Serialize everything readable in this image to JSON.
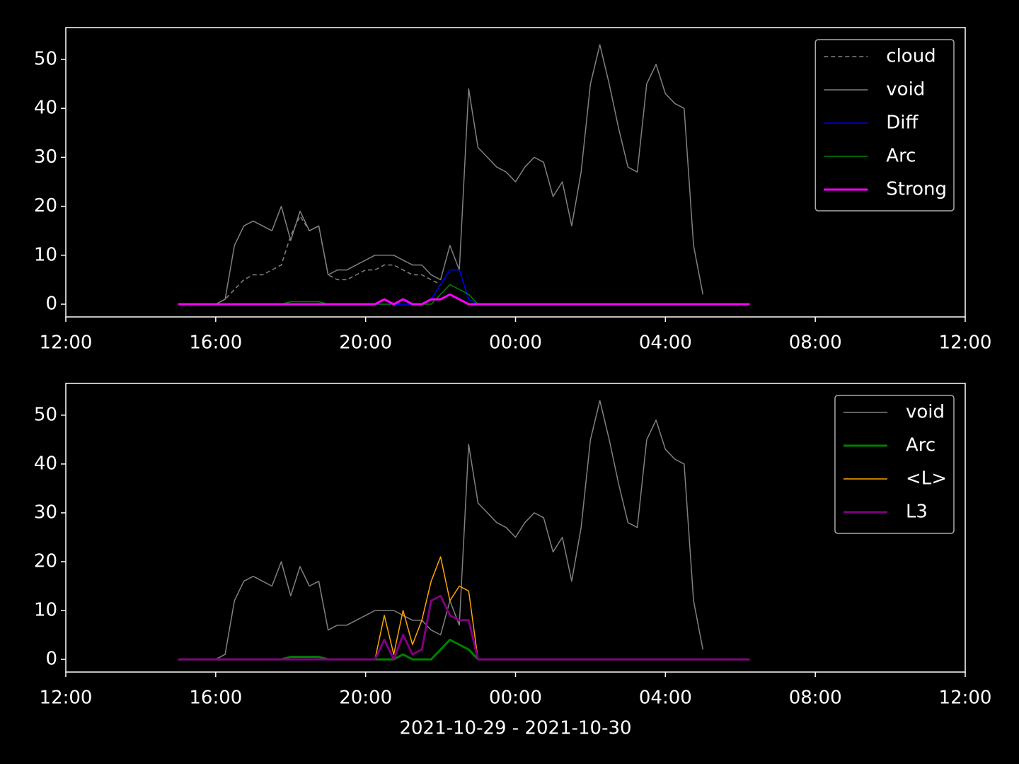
{
  "chart_data": [
    {
      "type": "line",
      "x": [
        15,
        15.25,
        15.5,
        15.75,
        16,
        16.25,
        16.5,
        16.75,
        17,
        17.25,
        17.5,
        17.75,
        18,
        18.25,
        18.5,
        18.75,
        19,
        19.25,
        19.5,
        19.75,
        20,
        20.25,
        20.5,
        20.75,
        21,
        21.25,
        21.5,
        21.75,
        22,
        22.25,
        22.5,
        22.75,
        23,
        23.25,
        23.5,
        23.75,
        24,
        24.25,
        24.5,
        24.75,
        25,
        25.25,
        25.5,
        25.75,
        26,
        26.25,
        26.5,
        26.75,
        27,
        27.25,
        27.5,
        27.75,
        28,
        28.25,
        28.5,
        28.75,
        29,
        29.25,
        29.5,
        29.75,
        30,
        30.25
      ],
      "xlim": [
        12,
        36
      ],
      "xticks": [
        {
          "value": 12,
          "label": "12:00"
        },
        {
          "value": 16,
          "label": "16:00"
        },
        {
          "value": 20,
          "label": "20:00"
        },
        {
          "value": 24,
          "label": "00:00"
        },
        {
          "value": 28,
          "label": "04:00"
        },
        {
          "value": 32,
          "label": "08:00"
        },
        {
          "value": 36,
          "label": "12:00"
        }
      ],
      "ylim": [
        -2.6,
        56.5
      ],
      "yticks": [
        0,
        10,
        20,
        30,
        40,
        50
      ],
      "legend": "upper right",
      "series": [
        {
          "name": "cloud",
          "color": "#808080",
          "linestyle": "dashed",
          "linewidth": 1.5,
          "values": [
            0,
            0,
            0,
            0,
            0,
            1,
            3,
            5,
            6,
            6,
            7,
            8,
            14,
            18,
            15,
            16,
            6,
            5,
            5,
            6,
            7,
            7,
            8,
            8,
            7,
            6,
            6,
            5,
            4,
            null,
            null,
            null,
            null,
            null,
            null,
            null,
            null,
            null,
            null,
            null,
            null,
            null,
            null,
            null,
            null,
            null,
            null,
            null,
            null,
            null,
            null,
            null,
            null,
            null,
            null,
            null,
            null,
            null,
            null,
            null,
            null,
            null
          ]
        },
        {
          "name": "void",
          "color": "#808080",
          "linestyle": "solid",
          "linewidth": 1.5,
          "values": [
            0,
            0,
            0,
            0,
            0,
            1,
            12,
            16,
            17,
            16,
            15,
            20,
            13,
            19,
            15,
            16,
            6,
            7,
            7,
            8,
            9,
            10,
            10,
            10,
            9,
            8,
            8,
            6,
            5,
            12,
            7,
            44,
            32,
            30,
            28,
            27,
            25,
            28,
            30,
            29,
            22,
            25,
            16,
            27,
            45,
            53,
            45,
            36,
            28,
            27,
            45,
            49,
            43,
            41,
            40,
            12,
            2,
            null,
            null,
            null,
            null,
            null
          ]
        },
        {
          "name": "Diff",
          "color": "#0000ff",
          "linestyle": "solid",
          "linewidth": 1.5,
          "values": [
            0,
            0,
            0,
            0,
            0,
            0,
            0,
            0,
            0,
            0,
            0,
            0,
            0,
            0,
            0,
            0,
            0,
            0,
            0,
            0,
            0,
            0,
            0,
            0,
            0,
            0,
            0,
            1,
            4,
            7,
            7,
            1,
            0,
            0,
            0,
            0,
            0,
            0,
            0,
            0,
            0,
            0,
            0,
            0,
            0,
            0,
            0,
            0,
            0,
            0,
            0,
            0,
            0,
            0,
            0,
            0,
            0,
            0,
            0,
            0,
            0,
            0
          ]
        },
        {
          "name": "Arc",
          "color": "#008000",
          "linestyle": "solid",
          "linewidth": 1.5,
          "values": [
            0,
            0,
            0,
            0,
            0,
            0,
            0,
            0,
            0,
            0,
            0,
            0,
            0.5,
            0.5,
            0.5,
            0.5,
            0,
            0,
            0,
            0,
            0,
            0,
            0,
            0,
            1,
            0,
            0,
            0,
            2,
            4,
            3,
            2,
            0,
            0,
            0,
            0,
            0,
            0,
            0,
            0,
            0,
            0,
            0,
            0,
            0,
            0,
            0,
            0,
            0,
            0,
            0,
            0,
            0,
            0,
            0,
            0,
            0,
            0,
            0,
            0,
            0,
            0
          ]
        },
        {
          "name": "Strong",
          "color": "#ff00ff",
          "linestyle": "solid",
          "linewidth": 3,
          "values": [
            0,
            0,
            0,
            0,
            0,
            0,
            0,
            0,
            0,
            0,
            0,
            0,
            0,
            0,
            0,
            0,
            0,
            0,
            0,
            0,
            0,
            0,
            1,
            0,
            1,
            0,
            0,
            1,
            1,
            2,
            1,
            0,
            0,
            0,
            0,
            0,
            0,
            0,
            0,
            0,
            0,
            0,
            0,
            0,
            0,
            0,
            0,
            0,
            0,
            0,
            0,
            0,
            0,
            0,
            0,
            0,
            0,
            0,
            0,
            0,
            0,
            0
          ]
        }
      ]
    },
    {
      "type": "line",
      "x": [
        15,
        15.25,
        15.5,
        15.75,
        16,
        16.25,
        16.5,
        16.75,
        17,
        17.25,
        17.5,
        17.75,
        18,
        18.25,
        18.5,
        18.75,
        19,
        19.25,
        19.5,
        19.75,
        20,
        20.25,
        20.5,
        20.75,
        21,
        21.25,
        21.5,
        21.75,
        22,
        22.25,
        22.5,
        22.75,
        23,
        23.25,
        23.5,
        23.75,
        24,
        24.25,
        24.5,
        24.75,
        25,
        25.25,
        25.5,
        25.75,
        26,
        26.25,
        26.5,
        26.75,
        27,
        27.25,
        27.5,
        27.75,
        28,
        28.25,
        28.5,
        28.75,
        29,
        29.25,
        29.5,
        29.75,
        30,
        30.25
      ],
      "xlim": [
        12,
        36
      ],
      "xticks": [
        {
          "value": 12,
          "label": "12:00"
        },
        {
          "value": 16,
          "label": "16:00"
        },
        {
          "value": 20,
          "label": "20:00"
        },
        {
          "value": 24,
          "label": "00:00"
        },
        {
          "value": 28,
          "label": "04:00"
        },
        {
          "value": 32,
          "label": "08:00"
        },
        {
          "value": 36,
          "label": "12:00"
        }
      ],
      "ylim": [
        -2.6,
        56.5
      ],
      "yticks": [
        0,
        10,
        20,
        30,
        40,
        50
      ],
      "xlabel": "2021-10-29 - 2021-10-30",
      "legend": "upper right",
      "series": [
        {
          "name": "void",
          "color": "#808080",
          "linestyle": "solid",
          "linewidth": 1.5,
          "values": [
            0,
            0,
            0,
            0,
            0,
            1,
            12,
            16,
            17,
            16,
            15,
            20,
            13,
            19,
            15,
            16,
            6,
            7,
            7,
            8,
            9,
            10,
            10,
            10,
            9,
            8,
            8,
            6,
            5,
            12,
            7,
            44,
            32,
            30,
            28,
            27,
            25,
            28,
            30,
            29,
            22,
            25,
            16,
            27,
            45,
            53,
            45,
            36,
            28,
            27,
            45,
            49,
            43,
            41,
            40,
            12,
            2,
            null,
            null,
            null,
            null,
            null
          ]
        },
        {
          "name": "Arc",
          "color": "#008000",
          "linestyle": "solid",
          "linewidth": 3,
          "values": [
            0,
            0,
            0,
            0,
            0,
            0,
            0,
            0,
            0,
            0,
            0,
            0,
            0.5,
            0.5,
            0.5,
            0.5,
            0,
            0,
            0,
            0,
            0,
            0,
            0,
            0,
            1,
            0,
            0,
            0,
            2,
            4,
            3,
            2,
            0,
            0,
            0,
            0,
            0,
            0,
            0,
            0,
            0,
            0,
            0,
            0,
            0,
            0,
            0,
            0,
            0,
            0,
            0,
            0,
            0,
            0,
            0,
            0,
            0,
            0,
            0,
            0,
            0,
            0
          ]
        },
        {
          "name": "<L>",
          "color": "#ffa500",
          "linestyle": "solid",
          "linewidth": 1.5,
          "values": [
            0,
            0,
            0,
            0,
            0,
            0,
            0,
            0,
            0,
            0,
            0,
            0,
            0,
            0,
            0,
            0,
            0,
            0,
            0,
            0,
            0,
            0,
            9,
            1,
            10,
            3,
            8,
            16,
            21,
            12,
            15,
            14,
            0,
            0,
            0,
            0,
            0,
            0,
            0,
            0,
            0,
            0,
            0,
            0,
            0,
            0,
            0,
            0,
            0,
            0,
            0,
            0,
            0,
            0,
            0,
            0,
            0,
            0,
            0,
            0,
            0,
            0
          ]
        },
        {
          "name": "L3",
          "color": "#800080",
          "linestyle": "solid",
          "linewidth": 3,
          "values": [
            0,
            0,
            0,
            0,
            0,
            0,
            0,
            0,
            0,
            0,
            0,
            0,
            0,
            0,
            0,
            0,
            0,
            0,
            0,
            0,
            0,
            0,
            4,
            0,
            5,
            1,
            2,
            12,
            13,
            9,
            8,
            8,
            0,
            0,
            0,
            0,
            0,
            0,
            0,
            0,
            0,
            0,
            0,
            0,
            0,
            0,
            0,
            0,
            0,
            0,
            0,
            0,
            0,
            0,
            0,
            0,
            0,
            0,
            0,
            0,
            0,
            0
          ]
        }
      ]
    }
  ]
}
